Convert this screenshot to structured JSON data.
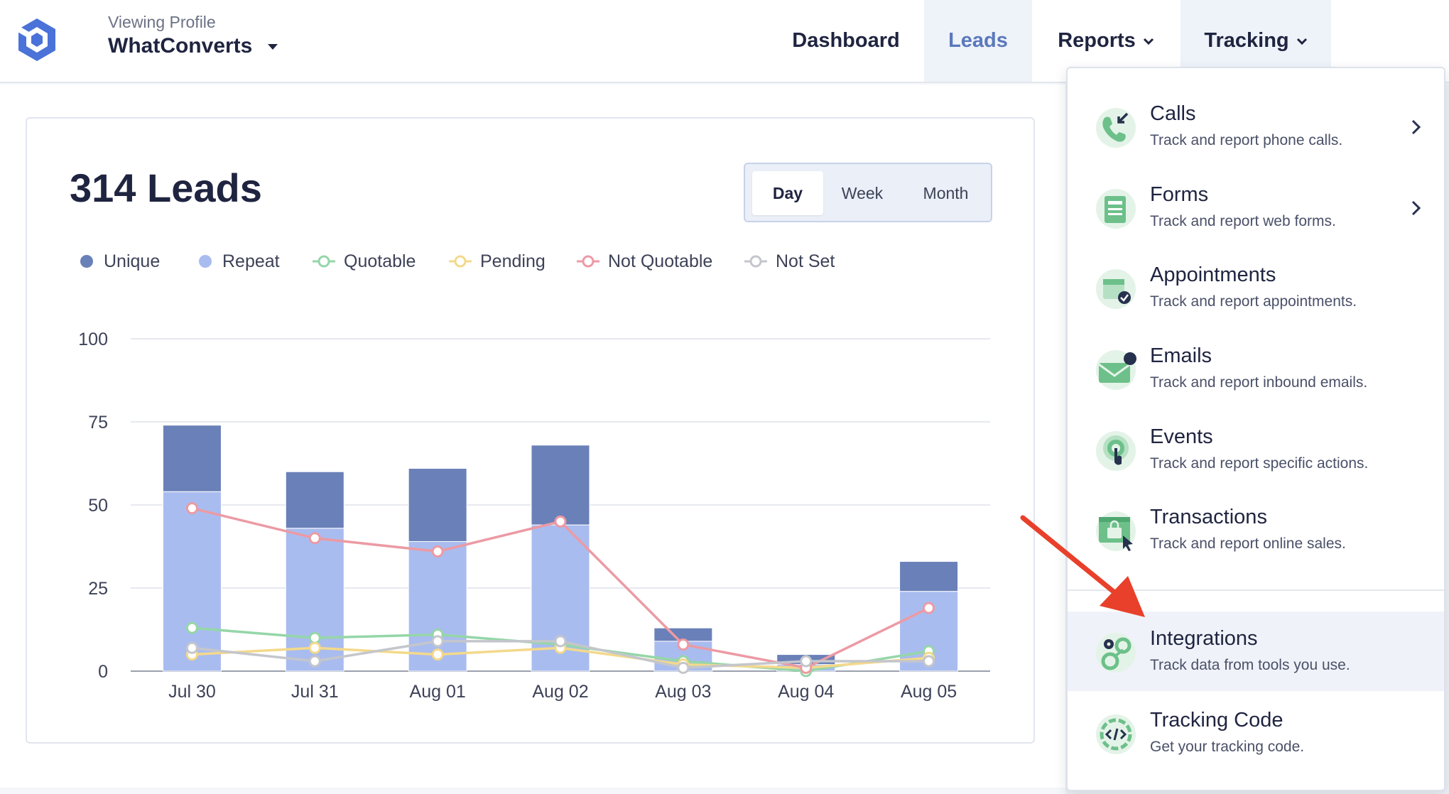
{
  "header": {
    "profile_caption": "Viewing Profile",
    "profile_name": "WhatConverts",
    "nav": {
      "dashboard": "Dashboard",
      "leads": "Leads",
      "reports": "Reports",
      "tracking": "Tracking"
    },
    "accent_color": "#5a78bb"
  },
  "card": {
    "title": "314 Leads",
    "periods": [
      "Day",
      "Week",
      "Month"
    ],
    "selected_period": "Day"
  },
  "legend": [
    {
      "label": "Unique",
      "color": "#6a80b8",
      "style": "dot"
    },
    {
      "label": "Repeat",
      "color": "#a9bcef",
      "style": "dot"
    },
    {
      "label": "Quotable",
      "color": "#95d6a8",
      "style": "ring"
    },
    {
      "label": "Pending",
      "color": "#f3d98b",
      "style": "ring"
    },
    {
      "label": "Not Quotable",
      "color": "#ec9aa4",
      "style": "ring"
    },
    {
      "label": "Not Set",
      "color": "#c4c6cc",
      "style": "ring"
    }
  ],
  "chart_data": {
    "type": "bar",
    "categories": [
      "Jul 30",
      "Jul 31",
      "Aug 01",
      "Aug 02",
      "Aug 03",
      "Aug 04",
      "Aug 05"
    ],
    "ylim": [
      0,
      100
    ],
    "yticks": [
      0,
      25,
      50,
      75,
      100
    ],
    "stacked": true,
    "grid": true,
    "series": [
      {
        "name": "Repeat",
        "kind": "bar",
        "color": "#a9bcef",
        "values": [
          54,
          43,
          39,
          44,
          9,
          2,
          24
        ]
      },
      {
        "name": "Unique",
        "kind": "bar",
        "color": "#6a80b8",
        "values": [
          20,
          17,
          22,
          24,
          4,
          3,
          9
        ]
      },
      {
        "name": "Quotable",
        "kind": "line",
        "color": "#95d6a8",
        "values": [
          13,
          10,
          11,
          8,
          3,
          0,
          6
        ]
      },
      {
        "name": "Pending",
        "kind": "line",
        "color": "#f3d98b",
        "values": [
          5,
          7,
          5,
          7,
          2,
          1,
          4
        ]
      },
      {
        "name": "Not Quotable",
        "kind": "line",
        "color": "#ec9aa4",
        "values": [
          49,
          40,
          36,
          45,
          8,
          1,
          19
        ]
      },
      {
        "name": "Not Set",
        "kind": "line",
        "color": "#c4c6cc",
        "values": [
          7,
          3,
          9,
          9,
          1,
          3,
          3
        ]
      }
    ]
  },
  "dropdown": {
    "items": [
      {
        "title": "Calls",
        "desc": "Track and report phone calls.",
        "icon": "phone-call-icon",
        "submenu": true
      },
      {
        "title": "Forms",
        "desc": "Track and report web forms.",
        "icon": "form-icon",
        "submenu": true
      },
      {
        "title": "Appointments",
        "desc": "Track and report appointments.",
        "icon": "calendar-check-icon",
        "submenu": false
      },
      {
        "title": "Emails",
        "desc": "Track and report inbound emails.",
        "icon": "envelope-icon",
        "submenu": false
      },
      {
        "title": "Events",
        "desc": "Track and report specific actions.",
        "icon": "click-target-icon",
        "submenu": false
      },
      {
        "title": "Transactions",
        "desc": "Track and report online sales.",
        "icon": "shopping-bag-icon",
        "submenu": false
      },
      {
        "title": "Integrations",
        "desc": "Track data from tools you use.",
        "icon": "gears-icon",
        "submenu": false,
        "active": true
      },
      {
        "title": "Tracking Code",
        "desc": "Get your tracking code.",
        "icon": "code-icon",
        "submenu": false
      }
    ]
  },
  "annotation": {
    "arrow_color": "#e8402a"
  }
}
